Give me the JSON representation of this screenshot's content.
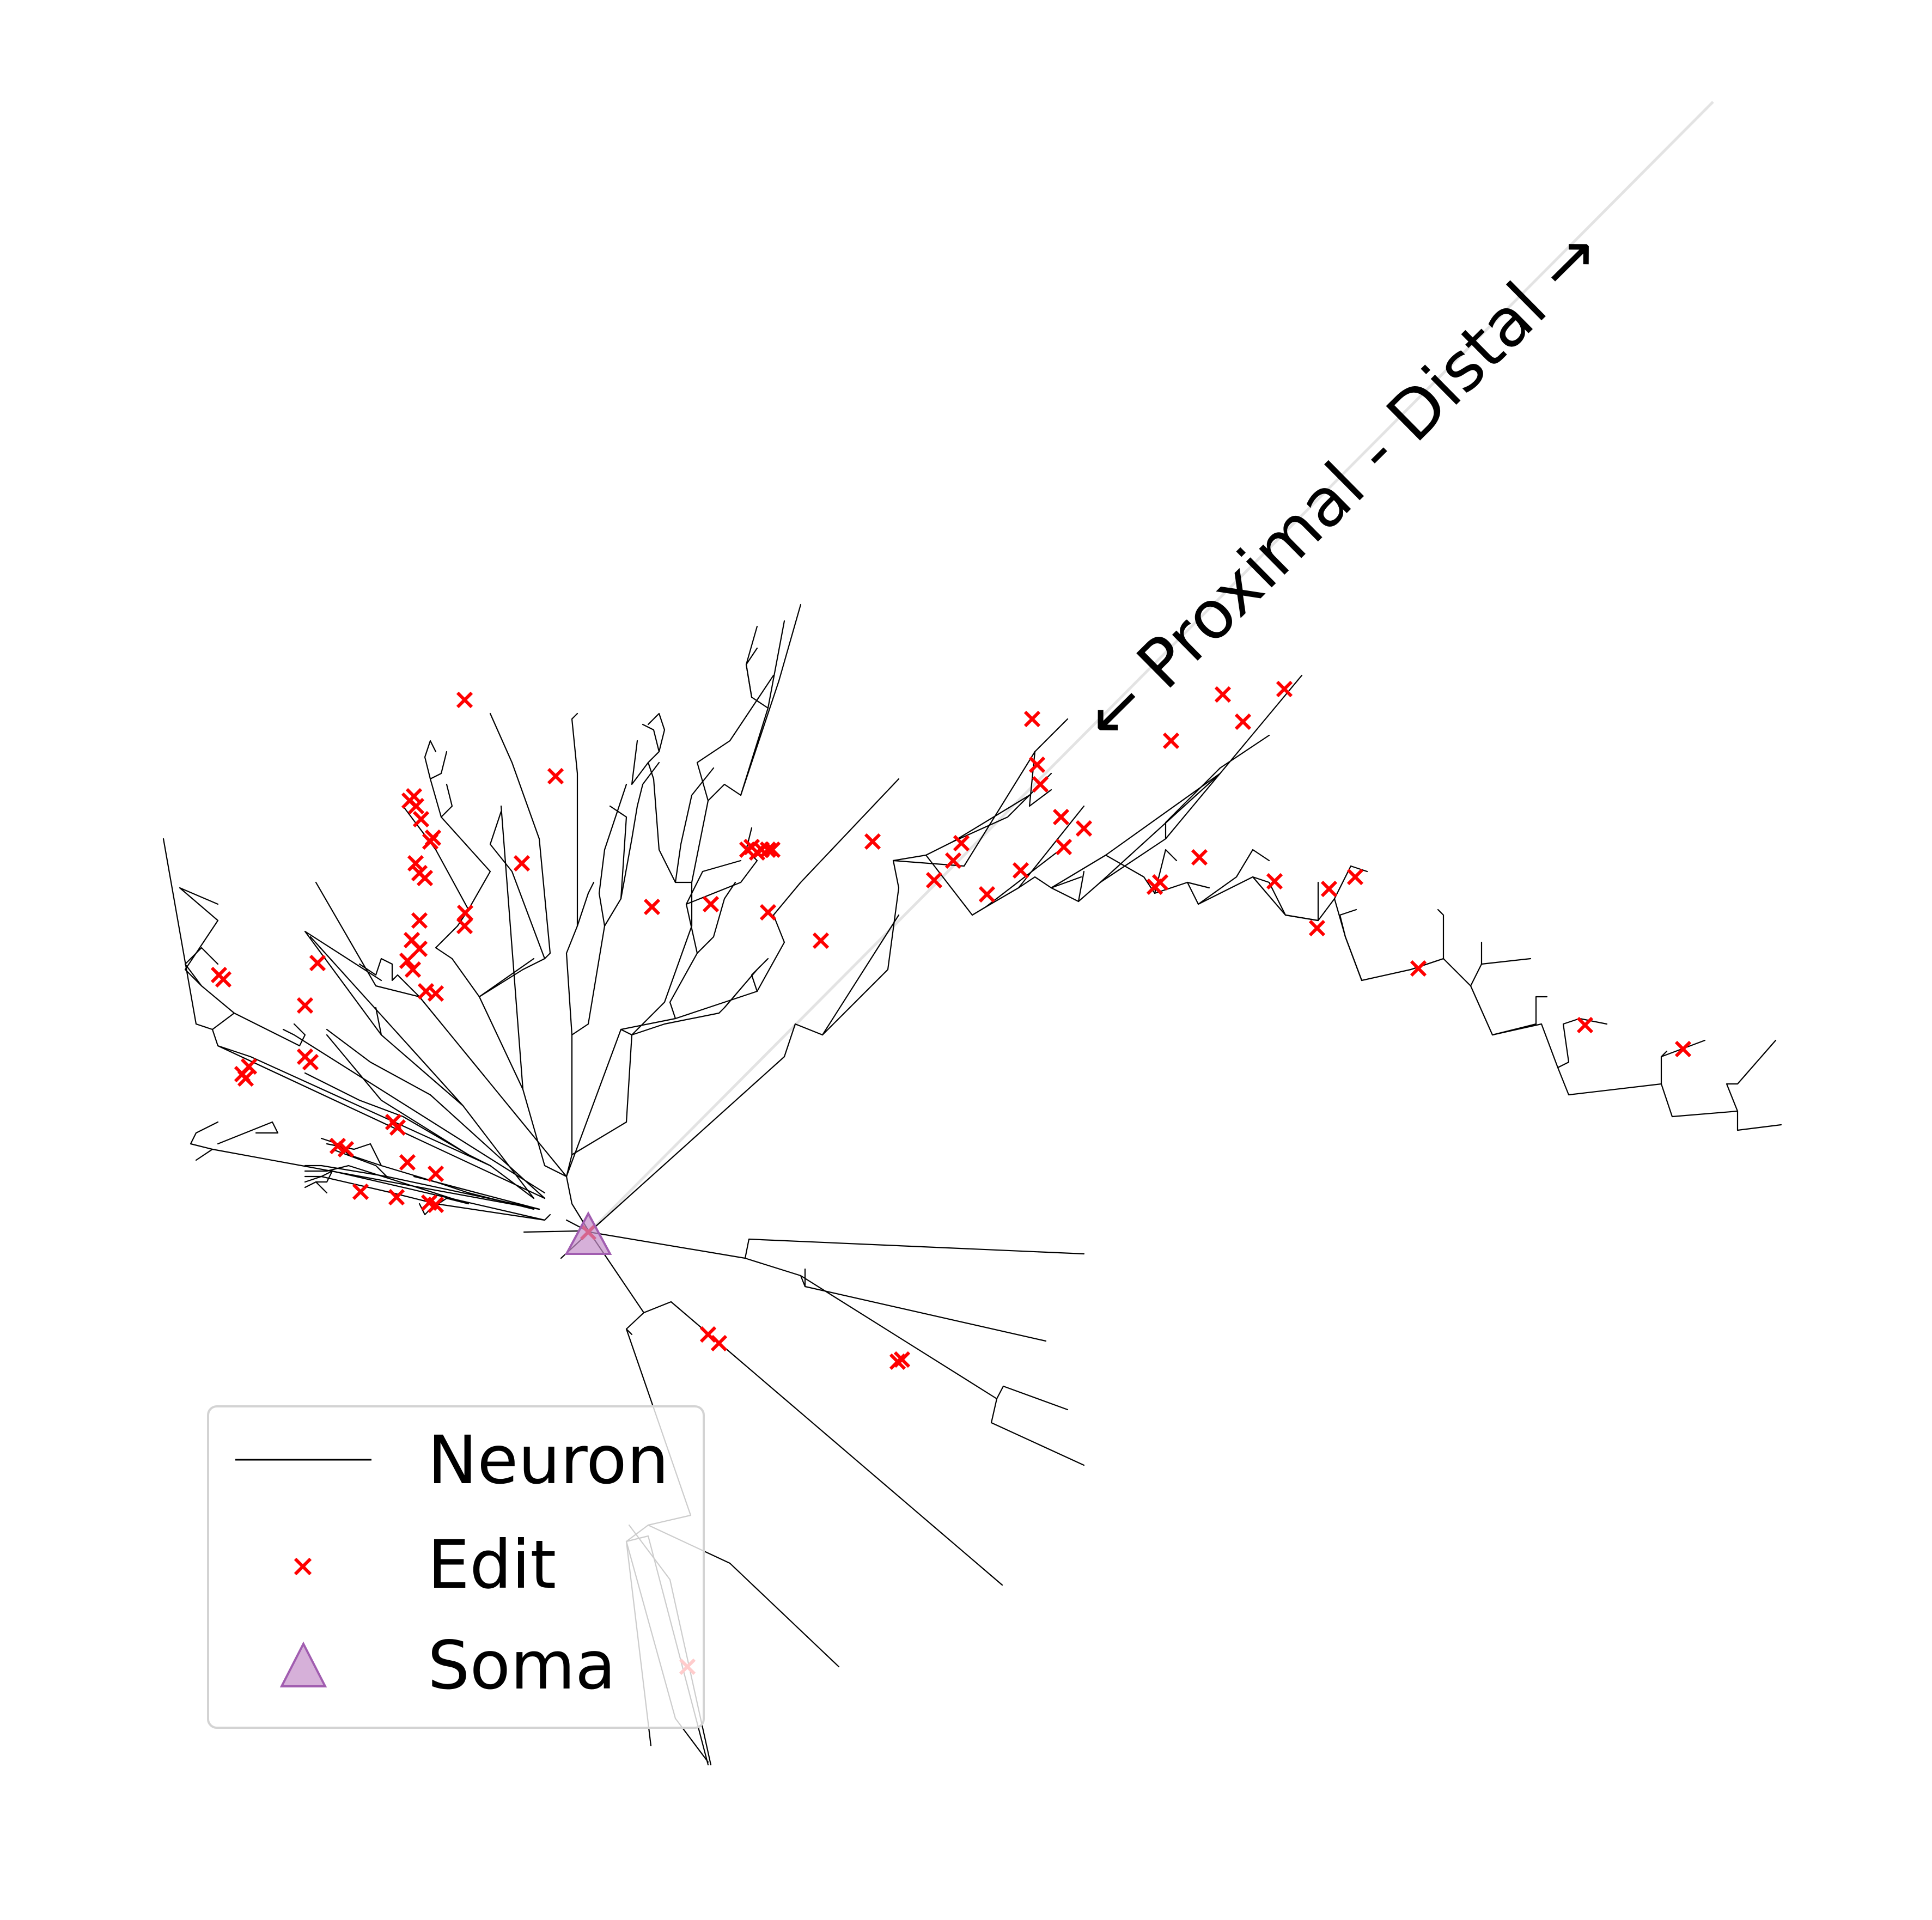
{
  "axis_annotation": "← Proximal - Distal →",
  "legend": {
    "neuron_label": "Neuron",
    "edit_label": "Edit",
    "soma_label": "Soma"
  },
  "colors": {
    "neuron": "#000000",
    "edit": "#ff0000",
    "soma_fill": "#c48ec9",
    "soma_stroke": "#a15db0",
    "reference_line": "#e3e3e3"
  }
}
